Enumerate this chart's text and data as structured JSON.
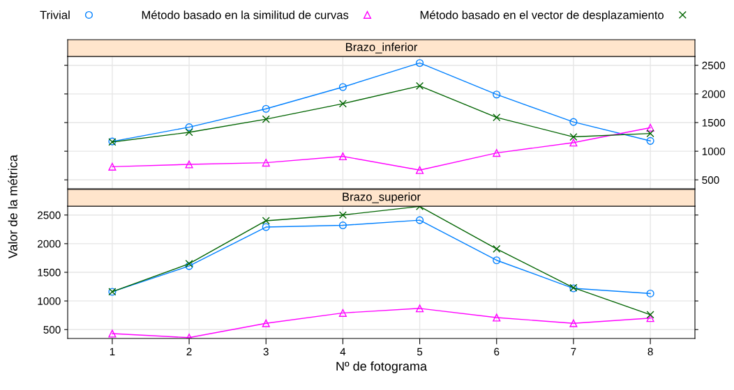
{
  "chart_data": [
    {
      "type": "line",
      "title": "Brazo_inferior",
      "ylabel": "Valor de la métrica",
      "x": [
        1,
        2,
        3,
        4,
        5,
        6,
        7,
        8
      ],
      "xlim": [
        0.42,
        8.58
      ],
      "xticks": [
        1,
        2,
        3,
        4,
        5,
        6,
        7,
        8
      ],
      "ylim": [
        345,
        2655
      ],
      "yticks": [
        500,
        1000,
        1500,
        2000,
        2500
      ],
      "grid": true,
      "legend": "top",
      "tick_labels": "y",
      "series": [
        {
          "name": "Trivial",
          "color": "#0080ff",
          "marker": "circle",
          "values": [
            1170,
            1420,
            1740,
            2120,
            2540,
            1990,
            1510,
            1180
          ]
        },
        {
          "name": "Método basado en la similitud de curvas",
          "color": "#ff00ff",
          "marker": "triangle",
          "values": [
            730,
            770,
            800,
            910,
            670,
            970,
            1150,
            1410
          ]
        },
        {
          "name": "Método basado en el vector de desplazamiento",
          "color": "#006400",
          "marker": "cross",
          "values": [
            1160,
            1330,
            1560,
            1830,
            2140,
            1590,
            1250,
            1310
          ]
        }
      ]
    },
    {
      "type": "line",
      "title": "Brazo_superior",
      "xlabel": "Nº de fotograma",
      "x": [
        1,
        2,
        3,
        4,
        5,
        6,
        7,
        8
      ],
      "xlim": [
        0.42,
        8.58
      ],
      "xticks": [
        1,
        2,
        3,
        4,
        5,
        6,
        7,
        8
      ],
      "ylim": [
        345,
        2655
      ],
      "yticks": [
        500,
        1000,
        1500,
        2000,
        2500
      ],
      "grid": true,
      "series": [
        {
          "color": "#0080ff",
          "marker": "circle",
          "values": [
            1160,
            1610,
            2290,
            2320,
            2410,
            1710,
            1220,
            1130
          ]
        },
        {
          "color": "#ff00ff",
          "marker": "triangle",
          "values": [
            430,
            360,
            610,
            790,
            870,
            710,
            610,
            700
          ]
        },
        {
          "color": "#006400",
          "marker": "cross",
          "values": [
            1160,
            1650,
            2400,
            2500,
            2650,
            1910,
            1230,
            760
          ]
        }
      ]
    }
  ]
}
